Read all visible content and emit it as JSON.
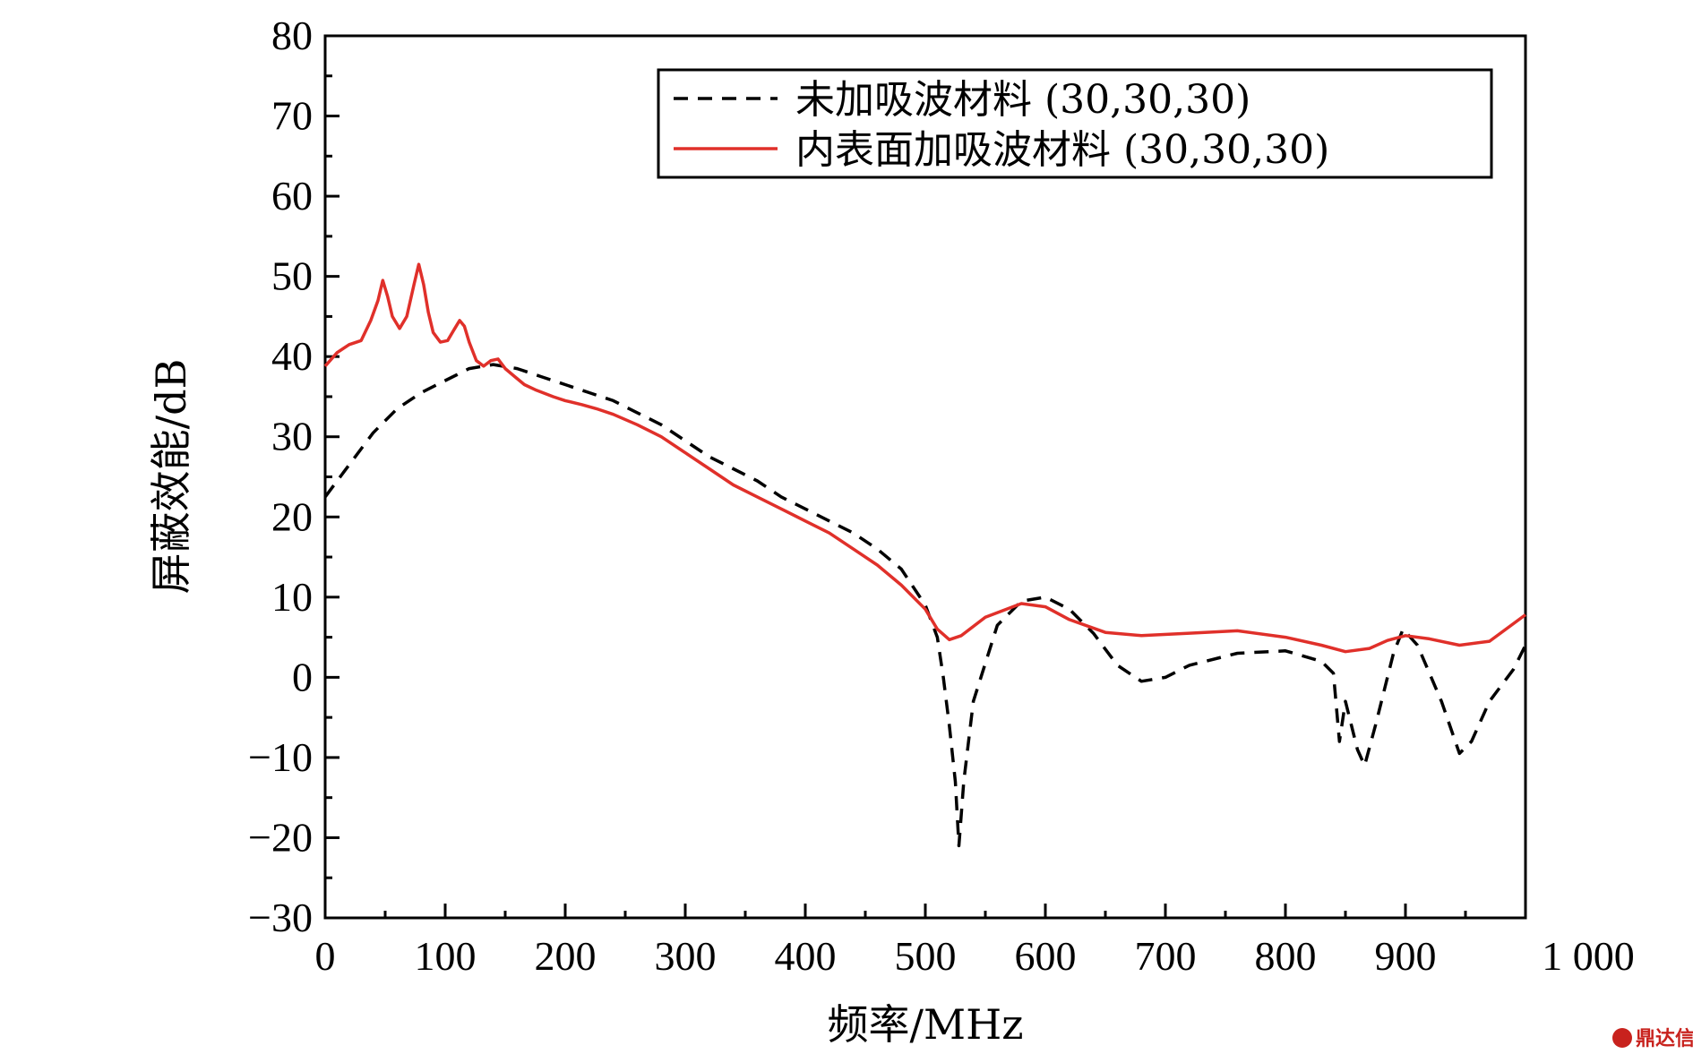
{
  "chart_data": {
    "type": "line",
    "xlabel": "频率/MHz",
    "ylabel": "屏蔽效能/dB",
    "xlim": [
      0,
      1000
    ],
    "ylim": [
      -30,
      80
    ],
    "x_ticks": [
      0,
      100,
      200,
      300,
      400,
      500,
      600,
      700,
      800,
      900,
      1000
    ],
    "x_tick_labels": [
      "0",
      "100",
      "200",
      "300",
      "400",
      "500",
      "600",
      "700",
      "800",
      "900",
      "1 000"
    ],
    "y_ticks": [
      -30,
      -20,
      -10,
      0,
      10,
      20,
      30,
      40,
      50,
      60,
      70,
      80
    ],
    "y_tick_labels": [
      "−30",
      "−20",
      "−10",
      "0",
      "10",
      "20",
      "30",
      "40",
      "50",
      "60",
      "70",
      "80"
    ],
    "grid": false,
    "legend_position": "top-right",
    "series": [
      {
        "name": "未加吸波材料 (30,30,30)",
        "style": "dashed",
        "color": "#000000",
        "x": [
          0,
          20,
          40,
          60,
          80,
          100,
          120,
          140,
          160,
          180,
          200,
          220,
          240,
          260,
          280,
          300,
          320,
          340,
          360,
          380,
          400,
          420,
          440,
          460,
          480,
          500,
          510,
          515,
          520,
          525,
          528,
          532,
          540,
          560,
          580,
          600,
          620,
          640,
          660,
          680,
          700,
          720,
          760,
          800,
          830,
          840,
          845,
          850,
          855,
          860,
          866,
          875,
          890,
          898,
          910,
          930,
          945,
          955,
          970,
          990,
          1000
        ],
        "y": [
          22.5,
          26.5,
          30.5,
          33.5,
          35.5,
          37.0,
          38.5,
          39.0,
          38.5,
          37.5,
          36.5,
          35.5,
          34.5,
          33.0,
          31.5,
          29.5,
          27.5,
          26.0,
          24.5,
          22.5,
          21.0,
          19.5,
          18.0,
          16.0,
          13.5,
          9.0,
          5.0,
          0.0,
          -6.0,
          -13.0,
          -21.0,
          -13.0,
          -3.0,
          6.5,
          9.5,
          10.0,
          8.5,
          5.5,
          1.5,
          -0.5,
          0.0,
          1.5,
          3.0,
          3.3,
          2.0,
          0.5,
          -8.0,
          -3.0,
          -6.0,
          -9.0,
          -11.0,
          -6.0,
          3.0,
          6.0,
          4.0,
          -3.0,
          -9.5,
          -8.0,
          -3.0,
          1.0,
          4.0
        ]
      },
      {
        "name": "内表面加吸波材料 (30,30,30)",
        "style": "solid",
        "color": "#e0302a",
        "x": [
          0,
          10,
          20,
          30,
          38,
          44,
          48,
          52,
          56,
          62,
          68,
          74,
          78,
          82,
          86,
          90,
          96,
          102,
          108,
          112,
          116,
          120,
          126,
          132,
          138,
          144,
          150,
          158,
          166,
          176,
          190,
          200,
          214,
          226,
          240,
          260,
          280,
          300,
          320,
          340,
          360,
          380,
          400,
          420,
          440,
          460,
          480,
          500,
          510,
          520,
          530,
          550,
          580,
          600,
          620,
          650,
          680,
          720,
          760,
          800,
          830,
          850,
          870,
          885,
          900,
          920,
          945,
          970,
          1000
        ],
        "y": [
          38.8,
          40.5,
          41.5,
          42.0,
          44.5,
          47.0,
          49.5,
          47.5,
          45.0,
          43.5,
          45.0,
          49.0,
          51.5,
          49.0,
          45.5,
          43.0,
          41.8,
          42.0,
          43.5,
          44.5,
          43.8,
          41.8,
          39.5,
          38.8,
          39.5,
          39.7,
          38.5,
          37.5,
          36.5,
          35.8,
          35.0,
          34.5,
          34.0,
          33.5,
          32.8,
          31.5,
          30.0,
          28.0,
          26.0,
          24.0,
          22.5,
          21.0,
          19.5,
          18.0,
          16.0,
          14.0,
          11.5,
          8.5,
          6.0,
          4.7,
          5.2,
          7.5,
          9.2,
          8.8,
          7.2,
          5.6,
          5.2,
          5.5,
          5.8,
          5.0,
          4.0,
          3.2,
          3.6,
          4.6,
          5.2,
          4.8,
          4.0,
          4.5,
          7.8
        ]
      }
    ]
  },
  "watermark": {
    "text": "鼎达信",
    "color": "#c8221d"
  }
}
